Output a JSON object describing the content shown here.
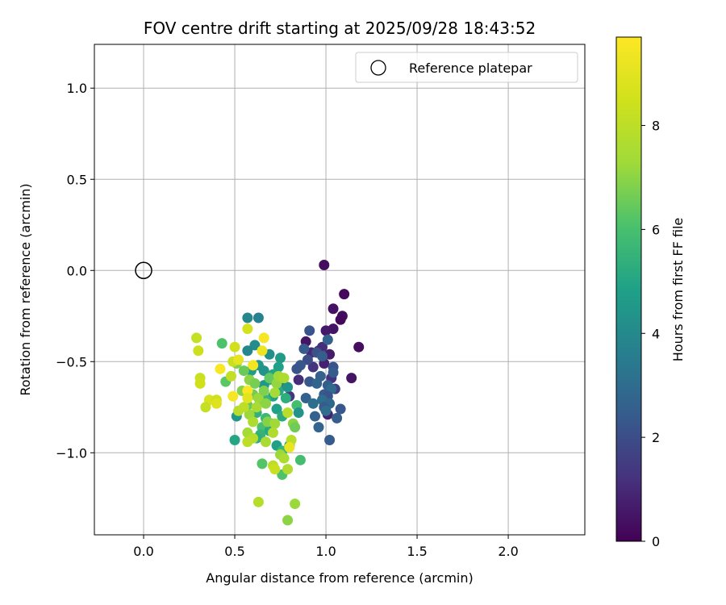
{
  "chart_data": {
    "type": "scatter",
    "title": "FOV centre drift starting at 2025/09/28 18:43:52",
    "xlabel": "Angular distance from reference (arcmin)",
    "ylabel": "Rotation from reference (arcmin)",
    "xlim": [
      -0.27,
      2.42
    ],
    "ylim": [
      -1.45,
      1.24
    ],
    "xticks": [
      0.0,
      0.5,
      1.0,
      1.5,
      2.0
    ],
    "xtick_labels": [
      "0.0",
      "0.5",
      "1.0",
      "1.5",
      "2.0"
    ],
    "yticks": [
      1.0,
      0.5,
      0.0,
      -0.5,
      -1.0
    ],
    "ytick_labels": [
      "1.0",
      "0.5",
      "0.0",
      "−0.5",
      "−1.0"
    ],
    "grid": true,
    "legend": {
      "position": "top-right",
      "label": "Reference platepar"
    },
    "reference_point": {
      "x": 0.0,
      "y": 0.0
    },
    "colorbar": {
      "label": "Hours from first FF file",
      "colormap": "viridis",
      "range": [
        0,
        9.7
      ],
      "ticks": [
        0,
        2,
        4,
        6,
        8
      ],
      "tick_labels": [
        "0",
        "2",
        "4",
        "6",
        "8"
      ]
    },
    "points": [
      {
        "x": 0.99,
        "y": 0.03,
        "t": 0.3
      },
      {
        "x": 1.1,
        "y": -0.13,
        "t": 0.2
      },
      {
        "x": 1.04,
        "y": -0.21,
        "t": 0.4
      },
      {
        "x": 1.09,
        "y": -0.25,
        "t": 0.3
      },
      {
        "x": 1.08,
        "y": -0.27,
        "t": 0.2
      },
      {
        "x": 1.04,
        "y": -0.32,
        "t": 0.5
      },
      {
        "x": 1.0,
        "y": -0.33,
        "t": 0.6
      },
      {
        "x": 1.18,
        "y": -0.42,
        "t": 0.3
      },
      {
        "x": 1.14,
        "y": -0.59,
        "t": 0.5
      },
      {
        "x": 0.89,
        "y": -0.39,
        "t": 0.5
      },
      {
        "x": 1.02,
        "y": -0.46,
        "t": 0.7
      },
      {
        "x": 0.99,
        "y": -0.51,
        "t": 0.8
      },
      {
        "x": 1.01,
        "y": -0.79,
        "t": 0.8
      },
      {
        "x": 0.96,
        "y": -0.44,
        "t": 1.2
      },
      {
        "x": 0.98,
        "y": -0.42,
        "t": 1.1
      },
      {
        "x": 0.92,
        "y": -0.45,
        "t": 1.0
      },
      {
        "x": 0.93,
        "y": -0.53,
        "t": 1.3
      },
      {
        "x": 1.03,
        "y": -0.59,
        "t": 1.2
      },
      {
        "x": 0.85,
        "y": -0.6,
        "t": 1.1
      },
      {
        "x": 0.8,
        "y": -0.69,
        "t": 1.3
      },
      {
        "x": 1.05,
        "y": -0.65,
        "t": 1.6
      },
      {
        "x": 0.91,
        "y": -0.33,
        "t": 2.2
      },
      {
        "x": 1.01,
        "y": -0.38,
        "t": 2.6
      },
      {
        "x": 0.88,
        "y": -0.43,
        "t": 2.4
      },
      {
        "x": 0.95,
        "y": -0.45,
        "t": 2.1
      },
      {
        "x": 0.98,
        "y": -0.47,
        "t": 2.5
      },
      {
        "x": 0.9,
        "y": -0.49,
        "t": 2.0
      },
      {
        "x": 0.86,
        "y": -0.52,
        "t": 2.3
      },
      {
        "x": 0.84,
        "y": -0.54,
        "t": 2.2
      },
      {
        "x": 1.04,
        "y": -0.53,
        "t": 2.2
      },
      {
        "x": 1.04,
        "y": -0.56,
        "t": 2.4
      },
      {
        "x": 0.97,
        "y": -0.58,
        "t": 2.6
      },
      {
        "x": 0.91,
        "y": -0.61,
        "t": 2.3
      },
      {
        "x": 0.95,
        "y": -0.62,
        "t": 2.7
      },
      {
        "x": 1.01,
        "y": -0.63,
        "t": 2.5
      },
      {
        "x": 1.03,
        "y": -0.65,
        "t": 2.9
      },
      {
        "x": 0.99,
        "y": -0.68,
        "t": 2.4
      },
      {
        "x": 0.89,
        "y": -0.7,
        "t": 2.6
      },
      {
        "x": 1.01,
        "y": -0.69,
        "t": 2.2
      },
      {
        "x": 0.98,
        "y": -0.71,
        "t": 3.0
      },
      {
        "x": 1.02,
        "y": -0.73,
        "t": 2.8
      },
      {
        "x": 0.93,
        "y": -0.73,
        "t": 3.1
      },
      {
        "x": 0.99,
        "y": -0.75,
        "t": 2.4
      },
      {
        "x": 1.08,
        "y": -0.76,
        "t": 2.3
      },
      {
        "x": 1.0,
        "y": -0.77,
        "t": 3.0
      },
      {
        "x": 0.94,
        "y": -0.8,
        "t": 2.6
      },
      {
        "x": 1.06,
        "y": -0.81,
        "t": 2.5
      },
      {
        "x": 0.96,
        "y": -0.86,
        "t": 2.7
      },
      {
        "x": 1.02,
        "y": -0.93,
        "t": 2.4
      },
      {
        "x": 0.76,
        "y": -0.63,
        "t": 3.3
      },
      {
        "x": 0.57,
        "y": -0.26,
        "t": 3.9
      },
      {
        "x": 0.63,
        "y": -0.26,
        "t": 3.7
      },
      {
        "x": 0.61,
        "y": -0.41,
        "t": 4.1
      },
      {
        "x": 0.57,
        "y": -0.44,
        "t": 3.9
      },
      {
        "x": 0.69,
        "y": -0.46,
        "t": 4.2
      },
      {
        "x": 0.75,
        "y": -0.48,
        "t": 4.6
      },
      {
        "x": 0.63,
        "y": -0.52,
        "t": 4.5
      },
      {
        "x": 0.66,
        "y": -0.55,
        "t": 4.3
      },
      {
        "x": 0.74,
        "y": -0.53,
        "t": 4.8
      },
      {
        "x": 0.59,
        "y": -0.55,
        "t": 4.7
      },
      {
        "x": 0.71,
        "y": -0.57,
        "t": 5.0
      },
      {
        "x": 0.69,
        "y": -0.6,
        "t": 5.5
      },
      {
        "x": 0.66,
        "y": -0.63,
        "t": 4.5
      },
      {
        "x": 0.74,
        "y": -0.66,
        "t": 5.1
      },
      {
        "x": 0.79,
        "y": -0.64,
        "t": 4.4
      },
      {
        "x": 0.78,
        "y": -0.7,
        "t": 5.3
      },
      {
        "x": 0.71,
        "y": -0.69,
        "t": 4.9
      },
      {
        "x": 0.67,
        "y": -0.71,
        "t": 5.6
      },
      {
        "x": 0.64,
        "y": -0.72,
        "t": 5.0
      },
      {
        "x": 0.73,
        "y": -0.76,
        "t": 4.8
      },
      {
        "x": 0.62,
        "y": -0.78,
        "t": 5.4
      },
      {
        "x": 0.84,
        "y": -0.74,
        "t": 5.9
      },
      {
        "x": 0.85,
        "y": -0.78,
        "t": 4.3
      },
      {
        "x": 0.51,
        "y": -0.8,
        "t": 4.5
      },
      {
        "x": 0.67,
        "y": -0.81,
        "t": 5.7
      },
      {
        "x": 0.76,
        "y": -0.8,
        "t": 5.2
      },
      {
        "x": 0.7,
        "y": -0.84,
        "t": 5.8
      },
      {
        "x": 0.65,
        "y": -0.86,
        "t": 6.0
      },
      {
        "x": 0.69,
        "y": -0.88,
        "t": 5.1
      },
      {
        "x": 0.64,
        "y": -0.9,
        "t": 5.5
      },
      {
        "x": 0.62,
        "y": -0.92,
        "t": 5.3
      },
      {
        "x": 0.5,
        "y": -0.93,
        "t": 5.0
      },
      {
        "x": 0.73,
        "y": -0.96,
        "t": 4.8
      },
      {
        "x": 0.8,
        "y": -0.96,
        "t": 5.2
      },
      {
        "x": 0.76,
        "y": -0.99,
        "t": 5.6
      },
      {
        "x": 0.86,
        "y": -1.04,
        "t": 5.9
      },
      {
        "x": 0.65,
        "y": -1.06,
        "t": 6.2
      },
      {
        "x": 0.76,
        "y": -1.12,
        "t": 6.1
      },
      {
        "x": 0.43,
        "y": -0.4,
        "t": 6.1
      },
      {
        "x": 0.45,
        "y": -0.61,
        "t": 6.3
      },
      {
        "x": 0.51,
        "y": -0.51,
        "t": 6.8
      },
      {
        "x": 0.55,
        "y": -0.55,
        "t": 6.5
      },
      {
        "x": 0.58,
        "y": -0.6,
        "t": 7.0
      },
      {
        "x": 0.61,
        "y": -0.62,
        "t": 6.7
      },
      {
        "x": 0.69,
        "y": -0.59,
        "t": 6.4
      },
      {
        "x": 0.73,
        "y": -0.62,
        "t": 7.1
      },
      {
        "x": 0.74,
        "y": -0.58,
        "t": 7.3
      },
      {
        "x": 0.77,
        "y": -0.59,
        "t": 7.6
      },
      {
        "x": 0.54,
        "y": -0.66,
        "t": 6.9
      },
      {
        "x": 0.6,
        "y": -0.68,
        "t": 6.6
      },
      {
        "x": 0.63,
        "y": -0.7,
        "t": 7.2
      },
      {
        "x": 0.66,
        "y": -0.66,
        "t": 6.8
      },
      {
        "x": 0.72,
        "y": -0.67,
        "t": 7.4
      },
      {
        "x": 0.57,
        "y": -0.74,
        "t": 6.5
      },
      {
        "x": 0.62,
        "y": -0.75,
        "t": 7.5
      },
      {
        "x": 0.67,
        "y": -0.73,
        "t": 7.0
      },
      {
        "x": 0.52,
        "y": -0.77,
        "t": 7.8
      },
      {
        "x": 0.58,
        "y": -0.79,
        "t": 7.2
      },
      {
        "x": 0.6,
        "y": -0.83,
        "t": 7.6
      },
      {
        "x": 0.68,
        "y": -0.83,
        "t": 6.9
      },
      {
        "x": 0.72,
        "y": -0.84,
        "t": 7.3
      },
      {
        "x": 0.79,
        "y": -0.78,
        "t": 7.9
      },
      {
        "x": 0.82,
        "y": -0.84,
        "t": 7.0
      },
      {
        "x": 0.83,
        "y": -0.86,
        "t": 6.6
      },
      {
        "x": 0.71,
        "y": -0.89,
        "t": 7.7
      },
      {
        "x": 0.57,
        "y": -0.89,
        "t": 7.4
      },
      {
        "x": 0.6,
        "y": -0.92,
        "t": 7.8
      },
      {
        "x": 0.57,
        "y": -0.94,
        "t": 8.0
      },
      {
        "x": 0.67,
        "y": -0.94,
        "t": 7.5
      },
      {
        "x": 0.81,
        "y": -0.93,
        "t": 7.9
      },
      {
        "x": 0.75,
        "y": -1.01,
        "t": 7.2
      },
      {
        "x": 0.77,
        "y": -1.03,
        "t": 7.6
      },
      {
        "x": 0.71,
        "y": -1.07,
        "t": 8.0
      },
      {
        "x": 0.72,
        "y": -1.09,
        "t": 8.3
      },
      {
        "x": 0.79,
        "y": -1.09,
        "t": 7.7
      },
      {
        "x": 0.63,
        "y": -1.27,
        "t": 7.8
      },
      {
        "x": 0.83,
        "y": -1.28,
        "t": 7.2
      },
      {
        "x": 0.79,
        "y": -1.37,
        "t": 7.0
      },
      {
        "x": 0.29,
        "y": -0.37,
        "t": 8.2
      },
      {
        "x": 0.3,
        "y": -0.44,
        "t": 8.4
      },
      {
        "x": 0.5,
        "y": -0.42,
        "t": 8.5
      },
      {
        "x": 0.49,
        "y": -0.5,
        "t": 8.3
      },
      {
        "x": 0.57,
        "y": -0.32,
        "t": 8.6
      },
      {
        "x": 0.48,
        "y": -0.58,
        "t": 8.1
      },
      {
        "x": 0.31,
        "y": -0.59,
        "t": 8.3
      },
      {
        "x": 0.31,
        "y": -0.62,
        "t": 8.5
      },
      {
        "x": 0.36,
        "y": -0.71,
        "t": 8.7
      },
      {
        "x": 0.4,
        "y": -0.71,
        "t": 8.4
      },
      {
        "x": 0.4,
        "y": -0.73,
        "t": 8.9
      },
      {
        "x": 0.34,
        "y": -0.75,
        "t": 8.2
      },
      {
        "x": 0.55,
        "y": -0.75,
        "t": 8.0
      },
      {
        "x": 0.66,
        "y": -0.37,
        "t": 9.5
      },
      {
        "x": 0.65,
        "y": -0.44,
        "t": 9.3
      },
      {
        "x": 0.42,
        "y": -0.54,
        "t": 9.6
      },
      {
        "x": 0.52,
        "y": -0.49,
        "t": 9.1
      },
      {
        "x": 0.6,
        "y": -0.52,
        "t": 9.4
      },
      {
        "x": 0.57,
        "y": -0.66,
        "t": 9.6
      },
      {
        "x": 0.57,
        "y": -0.7,
        "t": 9.0
      },
      {
        "x": 0.49,
        "y": -0.69,
        "t": 9.5
      },
      {
        "x": 0.8,
        "y": -0.97,
        "t": 9.2
      }
    ]
  }
}
